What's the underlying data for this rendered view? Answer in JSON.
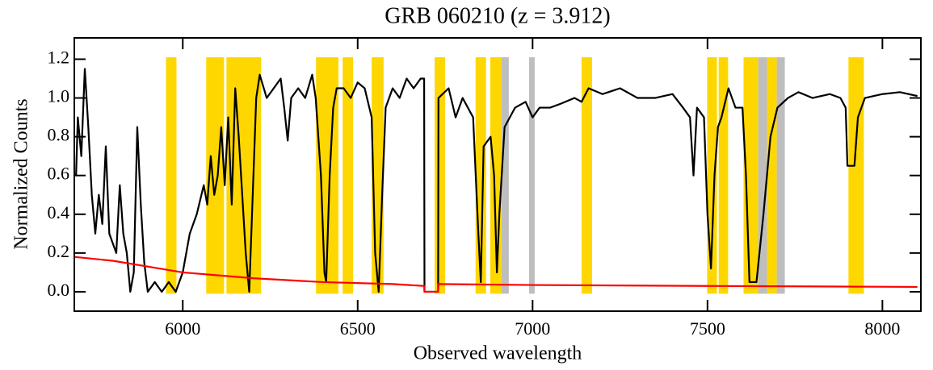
{
  "chart_data": {
    "type": "line",
    "title": "GRB 060210 (z = 3.912)",
    "xlabel": "Observed wavelength",
    "ylabel": "Normalized Counts",
    "xlim": [
      5690,
      8110
    ],
    "ylim": [
      -0.1,
      1.31
    ],
    "xticks": [
      6000,
      6500,
      7000,
      7500,
      8000
    ],
    "yticks": [
      {
        "value": 0,
        "label": "0.0"
      },
      0.2,
      0.4,
      0.6,
      0.8,
      {
        "value": 1,
        "label": "1.0"
      },
      1.2
    ],
    "bands": [
      {
        "color": "#ffd700",
        "y_range": [
          -0.01,
          1.21
        ],
        "ranges": [
          [
            5952,
            5982
          ],
          [
            6067,
            6118
          ],
          [
            6125,
            6224
          ],
          [
            6381,
            6445
          ],
          [
            6457,
            6487
          ],
          [
            6540,
            6574
          ],
          [
            6720,
            6750
          ],
          [
            6837,
            6867
          ],
          [
            6879,
            6911
          ],
          [
            7140,
            7170
          ],
          [
            7499,
            7527
          ],
          [
            7532,
            7559
          ],
          [
            7603,
            7645
          ],
          [
            7670,
            7698
          ],
          [
            7903,
            7947
          ]
        ]
      },
      {
        "color": "#bebebe",
        "y_range": [
          -0.01,
          1.21
        ],
        "ranges": [
          [
            6911,
            6932
          ],
          [
            6990,
            7006
          ],
          [
            7645,
            7670
          ],
          [
            7698,
            7721
          ]
        ]
      }
    ],
    "series": [
      {
        "color": "#000000",
        "x": [
          5695,
          5700,
          5710,
          5720,
          5730,
          5740,
          5750,
          5760,
          5770,
          5780,
          5790,
          5800,
          5810,
          5820,
          5830,
          5840,
          5850,
          5860,
          5870,
          5880,
          5890,
          5900,
          5920,
          5940,
          5960,
          5980,
          6000,
          6010,
          6020,
          6040,
          6060,
          6070,
          6080,
          6090,
          6100,
          6110,
          6120,
          6130,
          6140,
          6150,
          6160,
          6170,
          6180,
          6190,
          6200,
          6210,
          6220,
          6240,
          6260,
          6280,
          6290,
          6300,
          6310,
          6330,
          6350,
          6370,
          6380,
          6395,
          6405,
          6410,
          6420,
          6430,
          6440,
          6460,
          6480,
          6500,
          6520,
          6540,
          6550,
          6560,
          6570,
          6580,
          6600,
          6620,
          6640,
          6660,
          6680,
          6690,
          6691,
          6730,
          6731,
          6760,
          6780,
          6800,
          6830,
          6845,
          6852,
          6860,
          6880,
          6890,
          6898,
          6905,
          6920,
          6950,
          6980,
          7000,
          7020,
          7050,
          7080,
          7120,
          7140,
          7160,
          7200,
          7250,
          7300,
          7350,
          7400,
          7430,
          7450,
          7460,
          7470,
          7490,
          7500,
          7510,
          7520,
          7530,
          7540,
          7560,
          7580,
          7600,
          7610,
          7620,
          7640,
          7660,
          7680,
          7700,
          7730,
          7760,
          7800,
          7850,
          7880,
          7895,
          7900,
          7920,
          7930,
          7950,
          8000,
          8050,
          8100
        ],
        "values": [
          0.6,
          0.9,
          0.7,
          1.15,
          0.85,
          0.5,
          0.3,
          0.5,
          0.35,
          0.75,
          0.3,
          0.25,
          0.2,
          0.55,
          0.3,
          0.2,
          0.0,
          0.1,
          0.85,
          0.45,
          0.15,
          0.0,
          0.05,
          0.0,
          0.05,
          0.0,
          0.1,
          0.2,
          0.3,
          0.4,
          0.55,
          0.45,
          0.7,
          0.5,
          0.6,
          0.85,
          0.55,
          0.9,
          0.45,
          1.05,
          0.8,
          0.5,
          0.2,
          0.0,
          0.5,
          1.0,
          1.12,
          1.0,
          1.05,
          1.1,
          0.95,
          0.78,
          1.0,
          1.05,
          1.0,
          1.12,
          1.0,
          0.6,
          0.1,
          0.05,
          0.6,
          0.95,
          1.05,
          1.05,
          1.0,
          1.08,
          1.05,
          0.9,
          0.2,
          0.0,
          0.5,
          0.95,
          1.05,
          1.0,
          1.1,
          1.05,
          1.1,
          1.1,
          0.0,
          0.0,
          1.0,
          1.05,
          0.9,
          1.0,
          0.9,
          0.3,
          0.05,
          0.75,
          0.8,
          0.6,
          0.1,
          0.4,
          0.85,
          0.95,
          0.98,
          0.9,
          0.95,
          0.95,
          0.97,
          1.0,
          0.98,
          1.05,
          1.02,
          1.05,
          1.0,
          1.0,
          1.02,
          0.95,
          0.9,
          0.6,
          0.95,
          0.9,
          0.4,
          0.12,
          0.6,
          0.85,
          0.9,
          1.05,
          0.95,
          0.95,
          0.6,
          0.05,
          0.05,
          0.4,
          0.8,
          0.95,
          1.0,
          1.03,
          1.0,
          1.02,
          1.0,
          0.95,
          0.65,
          0.65,
          0.9,
          1.0,
          1.02,
          1.03,
          1.01
        ]
      },
      {
        "color": "#ff0000",
        "x": [
          5690,
          5800,
          5900,
          6000,
          6200,
          6400,
          6600,
          6690,
          6691,
          6730,
          6731,
          7000,
          7500,
          8100
        ],
        "values": [
          0.18,
          0.16,
          0.13,
          0.1,
          0.07,
          0.05,
          0.04,
          0.03,
          0.0,
          0.0,
          0.04,
          0.035,
          0.03,
          0.025
        ]
      }
    ]
  }
}
